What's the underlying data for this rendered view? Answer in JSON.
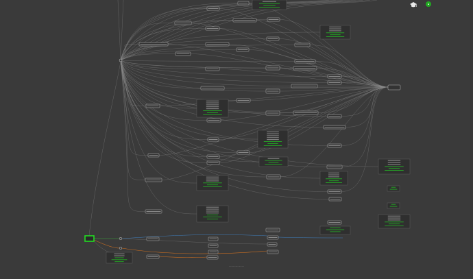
{
  "toolbar": {
    "learn_icon": "graduation-cap-icon",
    "status_icon": "status-dot-icon",
    "status_color": "#22aa22"
  },
  "graph": {
    "selected_color": "#22dd22",
    "edge_colors": {
      "default": "#8c8c8c",
      "blue": "#3f7fbf",
      "orange": "#d07020"
    }
  },
  "footer": {
    "status": "..........................."
  }
}
